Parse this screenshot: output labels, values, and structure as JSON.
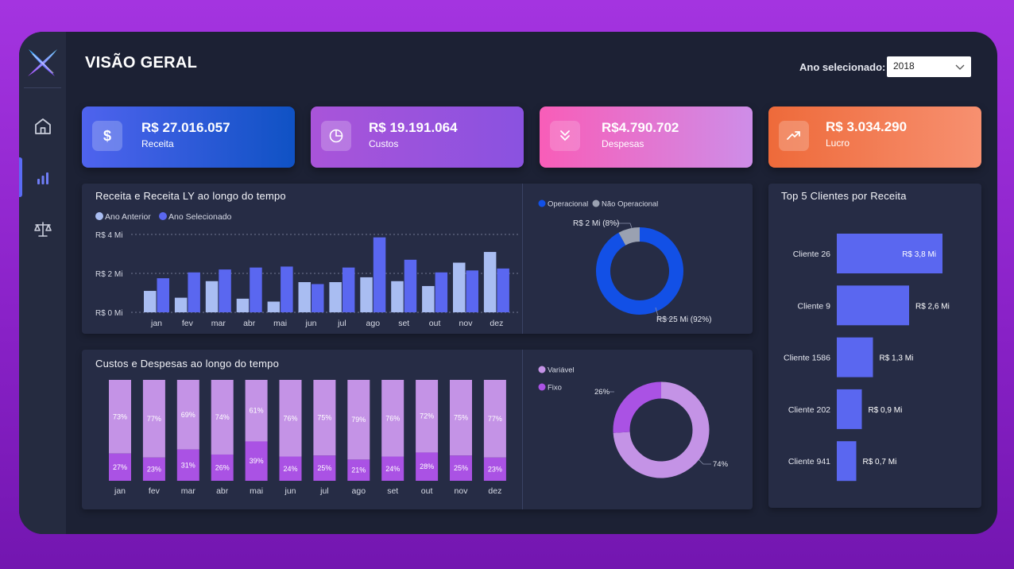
{
  "page": {
    "title": "VISÃO GERAL"
  },
  "filter": {
    "label": "Ano selecionado:",
    "value": "2018"
  },
  "nav": [
    {
      "name": "home",
      "icon": "home-icon"
    },
    {
      "name": "analytics",
      "icon": "bar-chart-icon",
      "active": true
    },
    {
      "name": "balance",
      "icon": "scale-icon"
    }
  ],
  "kpis": [
    {
      "value": "R$ 27.016.057",
      "label": "Receita",
      "icon": "dollar-icon"
    },
    {
      "value": "R$ 19.191.064",
      "label": "Custos",
      "icon": "pie-icon"
    },
    {
      "value": "R$4.790.702",
      "label": "Despesas",
      "icon": "chevrons-down-icon"
    },
    {
      "value": "R$ 3.034.290",
      "label": "Lucro",
      "icon": "trend-up-icon"
    }
  ],
  "revenue_card": {
    "title": "Receita e Receita LY ao longo do tempo"
  },
  "costs_card": {
    "title": "Custos e Despesas ao longo do tempo"
  },
  "clients_card": {
    "title": "Top 5 Clientes por Receita"
  },
  "colors": {
    "prev": "#a9bdf2",
    "selected": "#5a67f0",
    "oper": "#1250e6",
    "nonoper": "#9aa1b1",
    "variavel": "#c493e6",
    "fixo": "#aa52e4",
    "client_bar": "#5a67f0"
  },
  "chart_data": [
    {
      "type": "bar",
      "title": "Receita e Receita LY ao longo do tempo",
      "categories": [
        "jan",
        "fev",
        "mar",
        "abr",
        "mai",
        "jun",
        "jul",
        "ago",
        "set",
        "out",
        "nov",
        "dez"
      ],
      "series": [
        {
          "name": "Ano Anterior",
          "values": [
            1.1,
            0.75,
            1.6,
            0.7,
            0.55,
            1.55,
            1.55,
            1.8,
            1.6,
            1.35,
            2.55,
            3.1
          ]
        },
        {
          "name": "Ano Selecionado",
          "values": [
            1.75,
            2.05,
            2.2,
            2.3,
            2.35,
            1.45,
            2.3,
            3.85,
            2.7,
            2.05,
            2.15,
            2.25
          ]
        }
      ],
      "yticks": [
        "R$ 0 Mi",
        "R$ 2 Mi",
        "R$ 4 Mi"
      ],
      "ylim": [
        0,
        4
      ]
    },
    {
      "type": "pie",
      "legend": [
        "Operacional",
        "Não Operacional"
      ],
      "slices": [
        {
          "name": "Operacional",
          "value": 92,
          "label": "R$ 25 Mi (92%)"
        },
        {
          "name": "Não Operacional",
          "value": 8,
          "label": "R$ 2 Mi (8%)"
        }
      ]
    },
    {
      "type": "bar",
      "title": "Custos e Despesas ao longo do tempo",
      "stacked": "percent",
      "categories": [
        "jan",
        "fev",
        "mar",
        "abr",
        "mai",
        "jun",
        "jul",
        "ago",
        "set",
        "out",
        "nov",
        "dez"
      ],
      "series": [
        {
          "name": "Variável",
          "values": [
            73,
            77,
            69,
            74,
            61,
            76,
            75,
            79,
            76,
            72,
            75,
            77
          ]
        },
        {
          "name": "Fixo",
          "values": [
            27,
            23,
            31,
            26,
            39,
            24,
            25,
            21,
            24,
            28,
            25,
            23
          ]
        }
      ]
    },
    {
      "type": "pie",
      "legend": [
        "Variável",
        "Fixo"
      ],
      "slices": [
        {
          "name": "Variável",
          "value": 74,
          "label": "74%"
        },
        {
          "name": "Fixo",
          "value": 26,
          "label": "26%"
        }
      ]
    },
    {
      "type": "bar",
      "title": "Top 5 Clientes por Receita",
      "orientation": "horizontal",
      "categories": [
        "Cliente 26",
        "Cliente 9",
        "Cliente 1586",
        "Cliente 202",
        "Cliente 941"
      ],
      "values": [
        3.8,
        2.6,
        1.3,
        0.9,
        0.7
      ],
      "labels": [
        "R$ 3,8 Mi",
        "R$ 2,6 Mi",
        "R$ 1,3 Mi",
        "R$ 0,9 Mi",
        "R$ 0,7 Mi"
      ]
    }
  ]
}
